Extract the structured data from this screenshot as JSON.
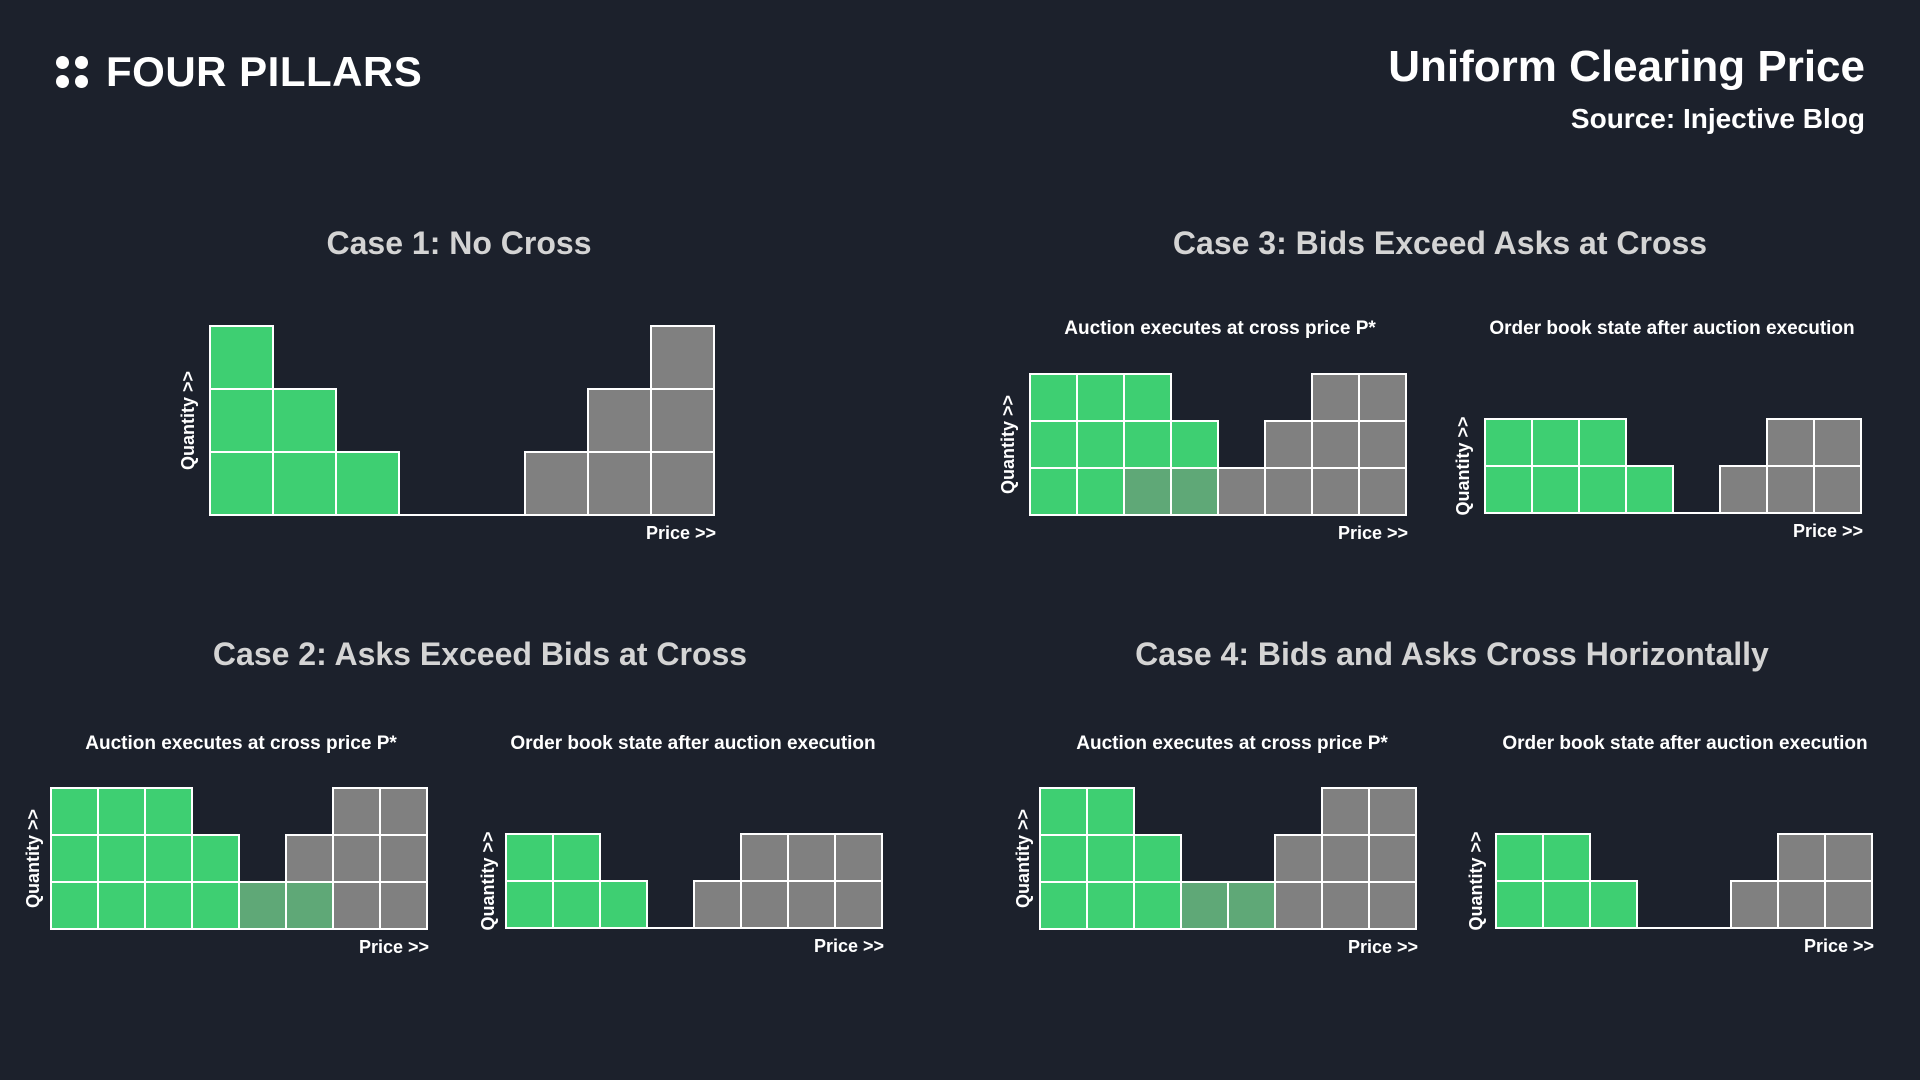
{
  "header": {
    "brand": "FOUR PILLARS",
    "brand_icon": "four-dots-logo-icon",
    "title": "Uniform Clearing Price",
    "source": "Source: Injective Blog"
  },
  "colors": {
    "background": "#1c212c",
    "bid": "#3ecf72",
    "ask": "#808080",
    "executed": "#5fa877",
    "grid": "#ffffff",
    "case_title": "#d4d4d4"
  },
  "axis_labels": {
    "x": "Price >>",
    "y": "Quantity >>"
  },
  "cases": {
    "case1": {
      "title": "Case 1: No Cross"
    },
    "case2": {
      "title": "Case 2: Asks Exceed Bids at Cross",
      "panel_before": "Auction executes at cross price P*",
      "panel_after": "Order book state after auction execution"
    },
    "case3": {
      "title": "Case 3: Bids Exceed Asks at Cross",
      "panel_before": "Auction executes at cross price P*",
      "panel_after": "Order book state after auction execution"
    },
    "case4": {
      "title": "Case 4: Bids and Asks Cross Horizontally",
      "panel_before": "Auction executes at cross price P*",
      "panel_after": "Order book state after auction execution"
    }
  },
  "chart_data": [
    {
      "id": "case1",
      "type": "bar",
      "title": "Case 1: No Cross",
      "xlabel": "Price >>",
      "ylabel": "Quantity >>",
      "columns": [
        [
          "B",
          "B",
          "B"
        ],
        [
          "B",
          "B"
        ],
        [
          "B"
        ],
        [],
        [],
        [
          "A"
        ],
        [
          "A",
          "A"
        ],
        [
          "A",
          "A",
          "A"
        ]
      ]
    },
    {
      "id": "case2-before",
      "type": "bar",
      "title": "Auction executes at cross price P*",
      "xlabel": "Price >>",
      "ylabel": "Quantity >>",
      "columns": [
        [
          "B",
          "B",
          "B"
        ],
        [
          "B",
          "B",
          "B"
        ],
        [
          "B",
          "B",
          "B"
        ],
        [
          "B",
          "B"
        ],
        [
          "X"
        ],
        [
          "X",
          "A"
        ],
        [
          "A",
          "A",
          "A"
        ],
        [
          "A",
          "A",
          "A"
        ]
      ]
    },
    {
      "id": "case2-after",
      "type": "bar",
      "title": "Order book state after auction execution",
      "xlabel": "Price >>",
      "ylabel": "Quantity >>",
      "columns": [
        [
          "B",
          "B"
        ],
        [
          "B",
          "B"
        ],
        [
          "B"
        ],
        [],
        [
          "A"
        ],
        [
          "A",
          "A"
        ],
        [
          "A",
          "A"
        ],
        [
          "A",
          "A"
        ]
      ]
    },
    {
      "id": "case3-before",
      "type": "bar",
      "title": "Auction executes at cross price P*",
      "xlabel": "Price >>",
      "ylabel": "Quantity >>",
      "columns": [
        [
          "B",
          "B",
          "B"
        ],
        [
          "B",
          "B",
          "B"
        ],
        [
          "X",
          "B",
          "B"
        ],
        [
          "X",
          "B"
        ],
        [
          "A"
        ],
        [
          "A",
          "A"
        ],
        [
          "A",
          "A",
          "A"
        ],
        [
          "A",
          "A",
          "A"
        ]
      ]
    },
    {
      "id": "case3-after",
      "type": "bar",
      "title": "Order book state after auction execution",
      "xlabel": "Price >>",
      "ylabel": "Quantity >>",
      "columns": [
        [
          "B",
          "B"
        ],
        [
          "B",
          "B"
        ],
        [
          "B",
          "B"
        ],
        [
          "B"
        ],
        [],
        [
          "A"
        ],
        [
          "A",
          "A"
        ],
        [
          "A",
          "A"
        ]
      ]
    },
    {
      "id": "case4-before",
      "type": "bar",
      "title": "Auction executes at cross price P*",
      "xlabel": "Price >>",
      "ylabel": "Quantity >>",
      "columns": [
        [
          "B",
          "B",
          "B"
        ],
        [
          "B",
          "B",
          "B"
        ],
        [
          "B",
          "B"
        ],
        [
          "X"
        ],
        [
          "X"
        ],
        [
          "A",
          "A"
        ],
        [
          "A",
          "A",
          "A"
        ],
        [
          "A",
          "A",
          "A"
        ]
      ]
    },
    {
      "id": "case4-after",
      "type": "bar",
      "title": "Order book state after auction execution",
      "xlabel": "Price >>",
      "ylabel": "Quantity >>",
      "columns": [
        [
          "B",
          "B"
        ],
        [
          "B",
          "B"
        ],
        [
          "B"
        ],
        [],
        [],
        [
          "A"
        ],
        [
          "A",
          "A"
        ],
        [
          "A",
          "A"
        ]
      ]
    }
  ]
}
